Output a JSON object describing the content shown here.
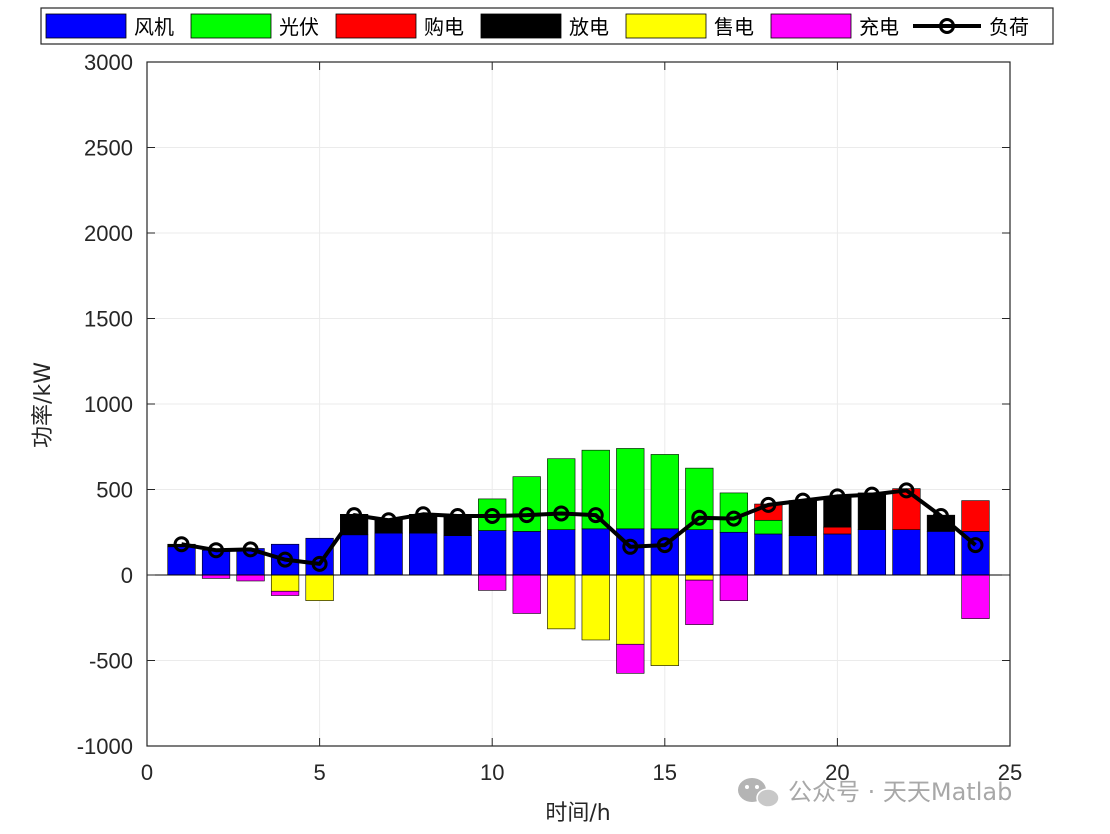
{
  "watermark": "公众号 · 天天Matlab",
  "chart_data": {
    "type": "bar",
    "stacked": true,
    "xlabel": "时间/h",
    "ylabel": "功率/kW",
    "xlim": [
      0,
      25
    ],
    "ylim": [
      -1000,
      3000
    ],
    "xticks": [
      0,
      5,
      10,
      15,
      20,
      25
    ],
    "yticks": [
      -1000,
      -500,
      0,
      500,
      1000,
      1500,
      2000,
      2500,
      3000
    ],
    "grid": true,
    "legend_position": "top",
    "x": [
      1,
      2,
      3,
      4,
      5,
      6,
      7,
      8,
      9,
      10,
      11,
      12,
      13,
      14,
      15,
      16,
      17,
      18,
      19,
      20,
      21,
      22,
      23,
      24
    ],
    "series": [
      {
        "name": "风机",
        "color": "#0000ff",
        "kind": "bar",
        "values": [
          165,
          145,
          155,
          180,
          215,
          235,
          245,
          245,
          230,
          260,
          255,
          265,
          270,
          270,
          270,
          265,
          250,
          240,
          230,
          240,
          265,
          265,
          255,
          255
        ]
      },
      {
        "name": "光伏",
        "color": "#00ff00",
        "kind": "bar",
        "values": [
          0,
          0,
          0,
          0,
          0,
          0,
          0,
          0,
          0,
          185,
          320,
          415,
          460,
          470,
          435,
          360,
          230,
          80,
          0,
          0,
          0,
          0,
          0,
          0
        ]
      },
      {
        "name": "购电",
        "color": "#ff0000",
        "kind": "bar",
        "values": [
          0,
          0,
          0,
          0,
          0,
          0,
          0,
          0,
          0,
          0,
          0,
          0,
          0,
          0,
          0,
          0,
          0,
          95,
          0,
          40,
          0,
          240,
          0,
          180
        ]
      },
      {
        "name": "放电",
        "color": "#000000",
        "kind": "bar",
        "values": [
          15,
          0,
          0,
          0,
          0,
          120,
          80,
          110,
          115,
          0,
          0,
          0,
          0,
          0,
          0,
          0,
          0,
          0,
          205,
          175,
          215,
          0,
          95,
          0
        ]
      },
      {
        "name": "售电",
        "color": "#ffff00",
        "kind": "bar",
        "values": [
          0,
          0,
          0,
          -95,
          -150,
          0,
          0,
          0,
          0,
          0,
          0,
          -315,
          -380,
          -405,
          -530,
          -30,
          0,
          0,
          0,
          0,
          0,
          0,
          0,
          0
        ]
      },
      {
        "name": "充电",
        "color": "#ff00ff",
        "kind": "bar",
        "values": [
          0,
          -20,
          -35,
          -25,
          0,
          0,
          0,
          0,
          0,
          -90,
          -225,
          0,
          0,
          -170,
          0,
          -260,
          -150,
          0,
          0,
          0,
          0,
          0,
          0,
          -255
        ]
      },
      {
        "name": "负荷",
        "color": "#000000",
        "kind": "line-marker",
        "values": [
          180,
          145,
          150,
          90,
          65,
          350,
          320,
          355,
          345,
          345,
          350,
          360,
          350,
          165,
          175,
          335,
          330,
          410,
          435,
          460,
          470,
          495,
          345,
          175
        ]
      }
    ]
  }
}
